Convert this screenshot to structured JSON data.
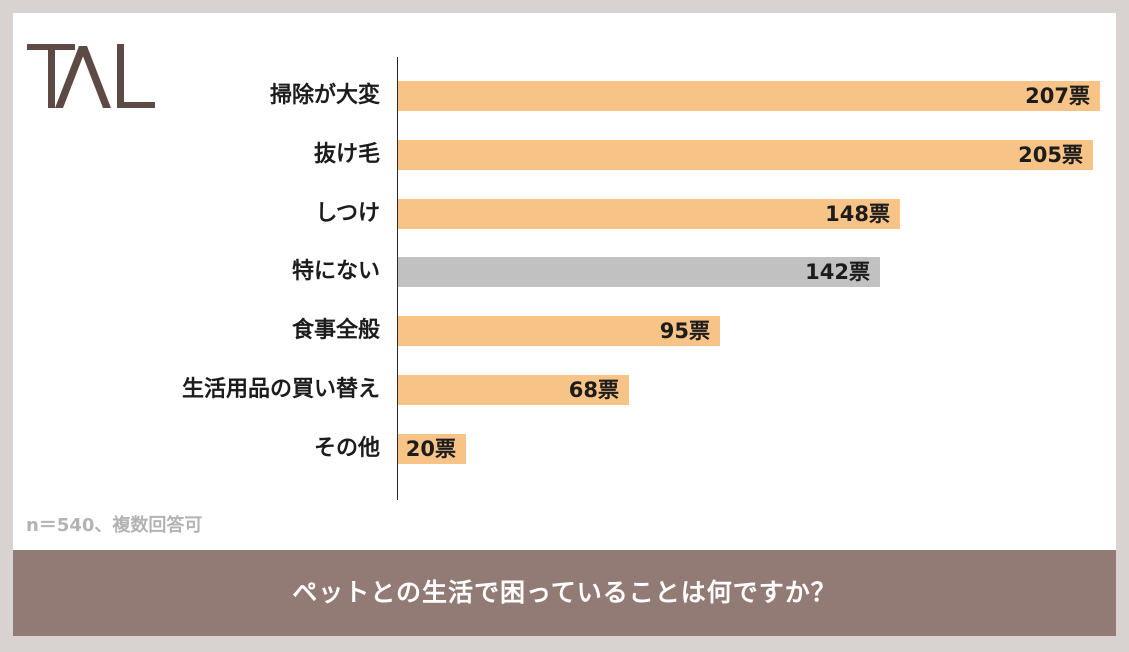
{
  "logo": {
    "text": "TAL",
    "color": "#5e4a45"
  },
  "note": "n＝540、複数回答可",
  "footer_title": "ペットとの生活で困っていることは何ですか？",
  "colors": {
    "highlight": "#f8c386",
    "muted": "#c1c1c1",
    "footer": "#927a75"
  },
  "chart_data": {
    "type": "bar",
    "orientation": "horizontal",
    "categories": [
      "掃除が大変",
      "抜け毛",
      "しつけ",
      "特にない",
      "食事全般",
      "生活用品の買い替え",
      "その他"
    ],
    "values": [
      207,
      205,
      148,
      142,
      95,
      68,
      20
    ],
    "value_labels": [
      "207票",
      "205票",
      "148票",
      "142票",
      "95票",
      "68票",
      "20票"
    ],
    "bar_colors": [
      "#f8c386",
      "#f8c386",
      "#f8c386",
      "#c1c1c1",
      "#f8c386",
      "#f8c386",
      "#f8c386"
    ],
    "xlim": [
      0,
      207
    ],
    "grid": false,
    "legend": "none"
  }
}
